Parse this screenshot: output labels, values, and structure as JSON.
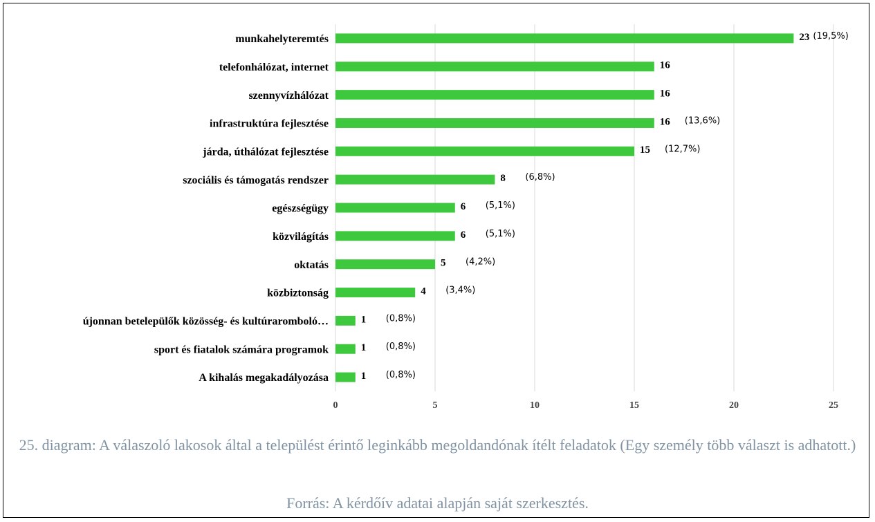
{
  "chart_data": {
    "type": "bar",
    "orientation": "horizontal",
    "categories": [
      "munkahelyteremtés",
      "telefonhálózat, internet",
      "szennyvízhálózat",
      "infrastruktúra fejlesztése",
      "járda, úthálózat fejlesztése",
      "szociális és támogatás rendszer",
      "egészségügy",
      "közvilágítás",
      "oktatás",
      "közbiztonság",
      "újonnan betelepülők közösség- és kultúraromboló…",
      "sport és fiatalok számára programok",
      "A kihalás megakadályozása"
    ],
    "values": [
      23,
      16,
      16,
      16,
      15,
      8,
      6,
      6,
      5,
      4,
      1,
      1,
      1
    ],
    "percent_labels": [
      "(19,5%)",
      null,
      null,
      "(13,6%)",
      "(12,7%)",
      "(6,8%)",
      "(5,1%)",
      "(5,1%)",
      "(4,2%)",
      "(3,4%)",
      "(0,8%)",
      "(0,8%)",
      "(0,8%)"
    ],
    "color": "#3ec83e",
    "xlim": [
      0,
      25
    ],
    "xticks": [
      0,
      5,
      10,
      15,
      20,
      25
    ],
    "grid": true,
    "caption": "25. diagram: A válaszoló lakosok által a települést érintő leginkább megoldandónak ítélt feladatok (Egy személy több választ is adhatott.)",
    "source": "Forrás: A kérdőív  adatai alapján saját szerkesztés."
  }
}
